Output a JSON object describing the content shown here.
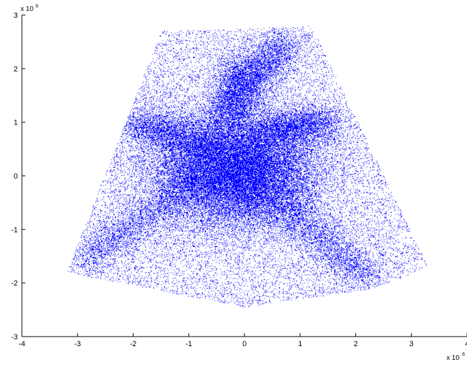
{
  "chart_data": {
    "type": "scatter",
    "title": "",
    "xlabel": "",
    "ylabel": "",
    "xlim": [
      -4,
      4
    ],
    "ylim": [
      -3,
      3
    ],
    "x_ticks": [
      "-4",
      "-3",
      "-2",
      "-1",
      "0",
      "1",
      "2",
      "3",
      "4"
    ],
    "y_ticks": [
      "-3",
      "-2",
      "-1",
      "0",
      "1",
      "2",
      "3"
    ],
    "x_exponent": {
      "base": "x 10",
      "power": "6"
    },
    "y_exponent": {
      "base": "x 10",
      "power": "6"
    },
    "grid": false,
    "legend": "none",
    "marker_color": "#0000ff",
    "series": [
      {
        "name": "",
        "point_count_approx": 60000,
        "dense_core": {
          "x_range": [
            -1.5,
            1.2
          ],
          "y_range": [
            -0.8,
            1.0
          ]
        },
        "arms": [
          {
            "from": [
              -0.5,
              0.2
            ],
            "to": [
              -2.9,
              -1.6
            ]
          },
          {
            "from": [
              0.3,
              -0.2
            ],
            "to": [
              2.2,
              -1.9
            ]
          },
          {
            "from": [
              -0.5,
              0.5
            ],
            "to": [
              -2.0,
              1.0
            ]
          },
          {
            "from": [
              0.2,
              0.8
            ],
            "to": [
              1.5,
              1.0
            ]
          },
          {
            "from": [
              -0.2,
              1.3
            ],
            "to": [
              0.7,
              2.5
            ]
          },
          {
            "from": [
              -0.3,
              0.8
            ],
            "to": [
              -0.1,
              2.1
            ]
          }
        ],
        "sparse_envelope": {
          "top": [
            [
              -1.5,
              2.7
            ],
            [
              1.2,
              2.8
            ]
          ],
          "left": [
            [
              -1.5,
              2.7
            ],
            [
              -3.2,
              -1.8
            ]
          ],
          "right": [
            [
              1.2,
              2.8
            ],
            [
              3.3,
              -1.7
            ]
          ],
          "bottom": [
            [
              -3.2,
              -1.8
            ],
            [
              0.0,
              -2.45
            ],
            [
              2.3,
              -2.1
            ]
          ]
        }
      }
    ]
  }
}
